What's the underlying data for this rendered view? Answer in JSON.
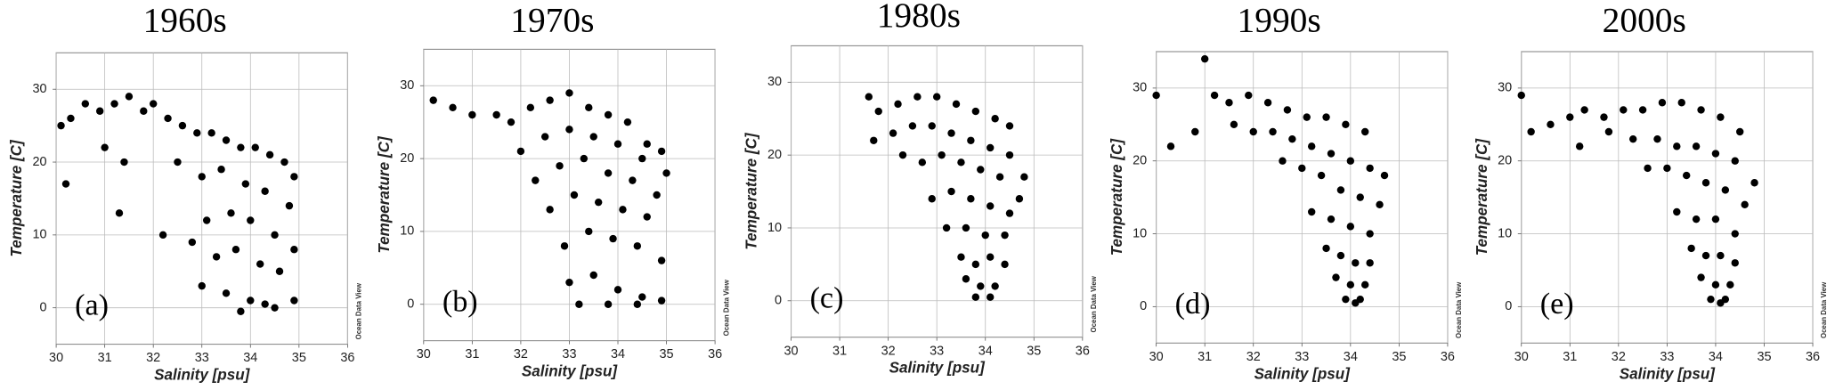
{
  "chart_data": [
    {
      "type": "scatter",
      "title": "1960s",
      "panel_label": "(a)",
      "x_label": "Salinity [psu]",
      "y_label": "Temperature [C]",
      "watermark": "Ocean Data View",
      "color": "#000000",
      "grid": true,
      "xlim": [
        30,
        36
      ],
      "ylim": [
        -5,
        35
      ],
      "xticks": [
        30,
        31,
        32,
        33,
        34,
        35,
        36
      ],
      "yticks": [
        0,
        10,
        20,
        30
      ],
      "x": [
        30.1,
        30.3,
        30.6,
        30.9,
        31.2,
        31.5,
        31.8,
        31.0,
        31.4,
        30.2,
        31.3,
        32.0,
        32.3,
        32.6,
        32.9,
        33.2,
        33.5,
        33.8,
        34.1,
        34.4,
        34.7,
        34.9,
        32.5,
        33.0,
        33.4,
        33.9,
        34.3,
        34.8,
        33.1,
        33.6,
        34.0,
        34.5,
        34.9,
        33.3,
        33.7,
        34.2,
        34.6,
        33.0,
        33.5,
        34.0,
        34.5,
        34.9,
        33.8,
        34.3,
        32.2,
        32.8
      ],
      "y": [
        25,
        26,
        28,
        27,
        28,
        29,
        27,
        22,
        20,
        17,
        13,
        28,
        26,
        25,
        24,
        24,
        23,
        22,
        22,
        21,
        20,
        18,
        20,
        18,
        19,
        17,
        16,
        14,
        12,
        13,
        12,
        10,
        8,
        7,
        8,
        6,
        5,
        3,
        2,
        1,
        0,
        1,
        -0.5,
        0.5,
        10,
        9
      ]
    },
    {
      "type": "scatter",
      "title": "1970s",
      "panel_label": "(b)",
      "x_label": "Salinity [psu]",
      "y_label": "Temperature [C]",
      "watermark": "Ocean Data View",
      "color": "#000000",
      "grid": true,
      "xlim": [
        30,
        36
      ],
      "ylim": [
        -5,
        35
      ],
      "xticks": [
        30,
        31,
        32,
        33,
        34,
        35,
        36
      ],
      "yticks": [
        0,
        10,
        20,
        30
      ],
      "x": [
        30.2,
        30.6,
        31.0,
        31.5,
        31.8,
        32.2,
        32.6,
        33.0,
        33.4,
        33.8,
        34.2,
        34.6,
        34.9,
        32.0,
        32.5,
        33.0,
        33.5,
        34.0,
        34.5,
        35.0,
        32.3,
        32.8,
        33.3,
        33.8,
        34.3,
        34.8,
        32.6,
        33.1,
        33.6,
        34.1,
        34.6,
        32.9,
        33.4,
        33.9,
        34.4,
        34.9,
        33.0,
        33.5,
        34.0,
        34.5,
        33.2,
        33.8,
        34.4,
        34.9
      ],
      "y": [
        28,
        27,
        26,
        26,
        25,
        27,
        28,
        29,
        27,
        26,
        25,
        22,
        21,
        21,
        23,
        24,
        23,
        22,
        20,
        18,
        17,
        19,
        20,
        18,
        17,
        15,
        13,
        15,
        14,
        13,
        12,
        8,
        10,
        9,
        8,
        6,
        3,
        4,
        2,
        1,
        0,
        0,
        0,
        0.5
      ]
    },
    {
      "type": "scatter",
      "title": "1980s",
      "panel_label": "(c)",
      "x_label": "Salinity [psu]",
      "y_label": "Temperature [C]",
      "watermark": "Ocean Data View",
      "color": "#000000",
      "grid": true,
      "xlim": [
        30,
        36
      ],
      "ylim": [
        -5,
        35
      ],
      "xticks": [
        30,
        31,
        32,
        33,
        34,
        35,
        36
      ],
      "yticks": [
        0,
        10,
        20,
        30
      ],
      "x": [
        31.6,
        31.8,
        32.2,
        32.6,
        33.0,
        33.4,
        33.8,
        34.2,
        34.5,
        31.7,
        32.1,
        32.5,
        32.9,
        33.3,
        33.7,
        34.1,
        34.5,
        34.8,
        32.3,
        32.7,
        33.1,
        33.5,
        33.9,
        34.3,
        34.7,
        32.9,
        33.3,
        33.7,
        34.1,
        34.5,
        33.2,
        33.6,
        34.0,
        34.4,
        33.5,
        33.8,
        34.1,
        34.4,
        33.6,
        33.9,
        34.2,
        33.8,
        34.1
      ],
      "y": [
        28,
        26,
        27,
        28,
        28,
        27,
        26,
        25,
        24,
        22,
        23,
        24,
        24,
        23,
        22,
        21,
        20,
        17,
        20,
        19,
        20,
        19,
        18,
        17,
        14,
        14,
        15,
        14,
        13,
        12,
        10,
        10,
        9,
        9,
        6,
        5,
        6,
        5,
        3,
        2,
        2,
        0.5,
        0.5
      ]
    },
    {
      "type": "scatter",
      "title": "1990s",
      "panel_label": "(d)",
      "x_label": "Salinity [psu]",
      "y_label": "Temperature [C]",
      "watermark": "Ocean Data View",
      "color": "#000000",
      "grid": true,
      "xlim": [
        30,
        36
      ],
      "ylim": [
        -5,
        35
      ],
      "xticks": [
        30,
        31,
        32,
        33,
        34,
        35,
        36
      ],
      "yticks": [
        0,
        10,
        20,
        30
      ],
      "x": [
        30.0,
        30.3,
        30.8,
        31.0,
        31.2,
        31.5,
        31.9,
        32.3,
        32.7,
        33.1,
        33.5,
        33.9,
        34.3,
        31.6,
        32.0,
        32.4,
        32.8,
        33.2,
        33.6,
        34.0,
        34.4,
        34.7,
        32.6,
        33.0,
        33.4,
        33.8,
        34.2,
        34.6,
        33.2,
        33.6,
        34.0,
        34.4,
        33.5,
        33.8,
        34.1,
        34.4,
        33.7,
        34.0,
        34.3,
        33.9,
        34.1,
        34.2
      ],
      "y": [
        29,
        22,
        24,
        34,
        29,
        28,
        29,
        28,
        27,
        26,
        26,
        25,
        24,
        25,
        24,
        24,
        23,
        22,
        21,
        20,
        19,
        18,
        20,
        19,
        18,
        16,
        15,
        14,
        13,
        12,
        11,
        10,
        8,
        7,
        6,
        6,
        4,
        3,
        3,
        1,
        0.5,
        1
      ]
    },
    {
      "type": "scatter",
      "title": "2000s",
      "panel_label": "(e)",
      "x_label": "Salinity [psu]",
      "y_label": "Temperature [C]",
      "watermark": "Ocean Data View",
      "color": "#000000",
      "grid": true,
      "xlim": [
        30,
        36
      ],
      "ylim": [
        -5,
        35
      ],
      "xticks": [
        30,
        31,
        32,
        33,
        34,
        35,
        36
      ],
      "yticks": [
        0,
        10,
        20,
        30
      ],
      "x": [
        30.0,
        30.2,
        30.6,
        31.0,
        31.3,
        31.7,
        32.1,
        32.5,
        32.9,
        33.3,
        33.7,
        34.1,
        34.5,
        31.2,
        31.8,
        32.3,
        32.8,
        33.2,
        33.6,
        34.0,
        34.4,
        34.8,
        32.6,
        33.0,
        33.4,
        33.8,
        34.2,
        34.6,
        33.2,
        33.6,
        34.0,
        34.4,
        33.5,
        33.8,
        34.1,
        34.4,
        33.7,
        34.0,
        34.3,
        33.9,
        34.1,
        34.2
      ],
      "y": [
        29,
        24,
        25,
        26,
        27,
        26,
        27,
        27,
        28,
        28,
        27,
        26,
        24,
        22,
        24,
        23,
        23,
        22,
        22,
        21,
        20,
        17,
        19,
        19,
        18,
        17,
        16,
        14,
        13,
        12,
        12,
        10,
        8,
        7,
        7,
        6,
        4,
        3,
        3,
        1,
        0.5,
        1
      ]
    }
  ]
}
